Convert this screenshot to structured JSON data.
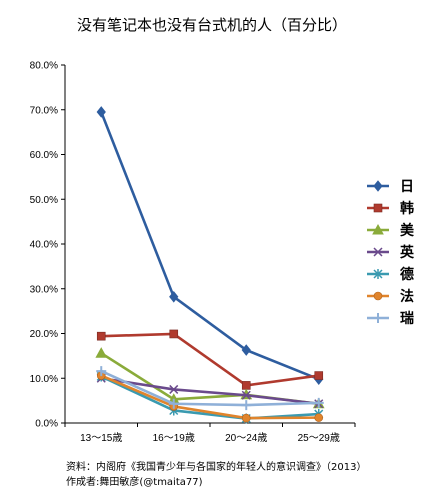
{
  "chart_data": {
    "type": "line",
    "title": "没有笔记本也没有台式机的人（百分比）",
    "categories": [
      "13～15歳",
      "16～19歳",
      "20～24歳",
      "25～29歳"
    ],
    "y_tick_labels": [
      "0.0%",
      "10.0%",
      "20.0%",
      "30.0%",
      "40.0%",
      "50.0%",
      "60.0%",
      "70.0%",
      "80.0%"
    ],
    "ylim": [
      0,
      80
    ],
    "grid": false,
    "legend_position": "right",
    "series": [
      {
        "name": "日",
        "color": "#2e5d9f",
        "marker": "diamond",
        "values": [
          69.5,
          28.2,
          16.3,
          9.8
        ]
      },
      {
        "name": "韩",
        "color": "#b03a2e",
        "marker": "square",
        "values": [
          19.4,
          19.9,
          8.4,
          10.6
        ]
      },
      {
        "name": "美",
        "color": "#8aab3a",
        "marker": "triangle",
        "values": [
          15.6,
          5.3,
          6.3,
          4.3
        ]
      },
      {
        "name": "英",
        "color": "#6a4a8c",
        "marker": "x",
        "values": [
          10.0,
          7.5,
          6.2,
          4.3
        ]
      },
      {
        "name": "德",
        "color": "#3a9ab0",
        "marker": "star",
        "values": [
          10.4,
          2.8,
          1.0,
          2.0
        ]
      },
      {
        "name": "法",
        "color": "#e0842c",
        "marker": "circle",
        "values": [
          10.6,
          3.7,
          1.1,
          1.2
        ]
      },
      {
        "name": "瑞",
        "color": "#8fb0d8",
        "marker": "plus",
        "values": [
          11.6,
          4.3,
          4.0,
          4.5
        ]
      }
    ]
  },
  "source_note": "资料：内阁府《我国青少年与各国家的年轻人的意识调查》（2013）",
  "author_note": "作成者:舞田敏彦(@tmaita77)"
}
